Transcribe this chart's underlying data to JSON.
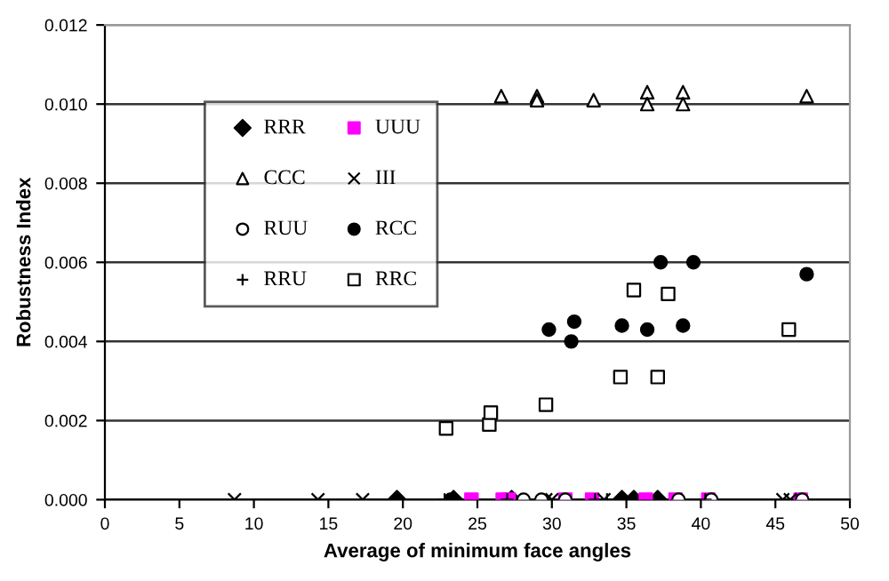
{
  "chart_data": {
    "type": "scatter",
    "xlabel": "Average of minimum face angles",
    "ylabel": "Robustness Index",
    "xlim": [
      0,
      50
    ],
    "xticks": [
      0,
      5,
      10,
      15,
      20,
      25,
      30,
      35,
      40,
      45,
      50
    ],
    "ylim": [
      0,
      0.012
    ],
    "yticks": [
      {
        "value": 0,
        "label": "0.000"
      },
      {
        "value": 0.002,
        "label": "0.002"
      },
      {
        "value": 0.004,
        "label": "0.004"
      },
      {
        "value": 0.006,
        "label": "0.006"
      },
      {
        "value": 0.008,
        "label": "0.008"
      },
      {
        "value": 0.01,
        "label": "0.010"
      },
      {
        "value": 0.012,
        "label": "0.012"
      }
    ],
    "grid": "y",
    "legend": "top left",
    "series": [
      {
        "name": "RRR",
        "color": "#000000",
        "marker": "diamond",
        "x": [
          19.6,
          23.4,
          27.3,
          34.7,
          35.5,
          37.1
        ],
        "values": [
          0,
          0,
          0,
          0,
          0,
          0
        ]
      },
      {
        "name": "UUU",
        "color": "#ff00ff",
        "marker": "square",
        "x": [
          24.6,
          26.7,
          27.1,
          30.9,
          32.7,
          36.3,
          38.3,
          40.5,
          46.7
        ],
        "values": [
          0,
          0,
          0,
          0,
          0,
          0,
          0,
          0,
          0
        ]
      },
      {
        "name": "CCC",
        "color": "#ffffff",
        "marker": "triangle",
        "x": [
          26.6,
          29.0,
          29.0,
          32.8,
          36.4,
          36.4,
          38.8,
          38.8,
          47.1
        ],
        "values": [
          0.0102,
          0.0102,
          0.0101,
          0.0101,
          0.0103,
          0.01,
          0.0103,
          0.01,
          0.0102
        ]
      },
      {
        "name": "III",
        "color": "#000000",
        "marker": "cross",
        "x": [
          8.7,
          14.3,
          17.3,
          29.6,
          30.0,
          33.5,
          45.5,
          46.0
        ],
        "values": [
          0,
          0,
          0,
          0,
          0,
          0,
          0,
          0
        ]
      },
      {
        "name": "RUU",
        "color": "#ffffff",
        "marker": "circle",
        "x": [
          28.1,
          29.3,
          30.9,
          38.5,
          40.7,
          46.8
        ],
        "values": [
          0,
          0,
          0,
          0,
          0,
          0
        ]
      },
      {
        "name": "RCC",
        "color": "#000000",
        "marker": "circle",
        "x": [
          23.2,
          29.8,
          31.3,
          31.5,
          34.7,
          36.4,
          37.3,
          38.8,
          39.5,
          47.1
        ],
        "values": [
          0,
          0.0043,
          0.004,
          0.0045,
          0.0044,
          0.0043,
          0.006,
          0.0044,
          0.006,
          0.0057
        ]
      },
      {
        "name": "RRU",
        "color": "#000000",
        "marker": "plus",
        "x": [
          22.8,
          27.0,
          32.9,
          33.7,
          40.3
        ],
        "values": [
          0,
          0,
          0,
          0,
          0
        ]
      },
      {
        "name": "RRC",
        "color": "#ffffff",
        "marker": "square",
        "x": [
          22.9,
          25.8,
          25.9,
          29.6,
          34.6,
          35.5,
          37.1,
          37.8,
          45.9
        ],
        "values": [
          0.0018,
          0.0019,
          0.0022,
          0.0024,
          0.0031,
          0.0053,
          0.0031,
          0.0052,
          0.0043
        ]
      }
    ]
  }
}
